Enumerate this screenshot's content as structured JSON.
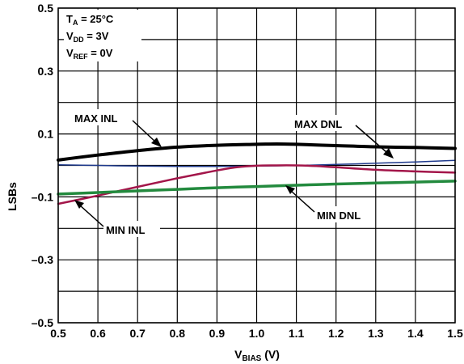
{
  "chart_data": {
    "type": "line",
    "x_label": "V",
    "x_label_sub": "BIAS",
    "x_label_unit": " (V)",
    "y_label": "LSBs",
    "xlim": [
      0.5,
      1.5
    ],
    "ylim": [
      -0.5,
      0.5
    ],
    "x_ticks": [
      "0.5",
      "0.6",
      "0.7",
      "0.8",
      "0.9",
      "1.0",
      "1.1",
      "1.2",
      "1.3",
      "1.4",
      "1.5"
    ],
    "y_ticks": [
      {
        "value": 0.5,
        "label": "0.5"
      },
      {
        "value": 0.3,
        "label": "0.3"
      },
      {
        "value": 0.1,
        "label": "0.1"
      },
      {
        "value": -0.1,
        "label": "–0.1"
      },
      {
        "value": -0.3,
        "label": "–0.3"
      },
      {
        "value": -0.5,
        "label": "–0.5"
      }
    ],
    "grid": true,
    "conditions": [
      {
        "main": "T",
        "sub": "A",
        "rest": " = 25°C"
      },
      {
        "main": "V",
        "sub": "DD",
        "rest": " = 3V"
      },
      {
        "main": "V",
        "sub": "REF",
        "rest": " = 0V"
      }
    ],
    "series": [
      {
        "name": "MAX INL",
        "color": "#000000",
        "width": 4,
        "x": [
          0.5,
          0.6,
          0.7,
          0.8,
          0.9,
          1.0,
          1.05,
          1.1,
          1.2,
          1.3,
          1.4,
          1.5
        ],
        "y": [
          0.017,
          0.033,
          0.047,
          0.058,
          0.064,
          0.067,
          0.068,
          0.067,
          0.063,
          0.059,
          0.057,
          0.054
        ]
      },
      {
        "name": "MAX DNL",
        "color": "#1f3a8c",
        "width": 1.5,
        "x": [
          0.5,
          0.6,
          0.7,
          0.8,
          0.9,
          1.0,
          1.1,
          1.2,
          1.3,
          1.4,
          1.5
        ],
        "y": [
          0.002,
          0.0,
          -0.002,
          -0.003,
          -0.003,
          -0.002,
          0.0,
          0.003,
          0.007,
          0.011,
          0.016
        ]
      },
      {
        "name": "MIN INL",
        "color": "#a3164a",
        "width": 2.5,
        "x": [
          0.5,
          0.6,
          0.7,
          0.8,
          0.9,
          0.95,
          1.0,
          1.05,
          1.1,
          1.15,
          1.2,
          1.3,
          1.4,
          1.5
        ],
        "y": [
          -0.122,
          -0.096,
          -0.068,
          -0.041,
          -0.016,
          -0.006,
          -0.001,
          0.0,
          0.0,
          -0.002,
          -0.006,
          -0.014,
          -0.019,
          -0.023
        ]
      },
      {
        "name": "MIN DNL",
        "color": "#238a3e",
        "width": 3.5,
        "x": [
          0.5,
          0.6,
          0.7,
          0.8,
          0.9,
          1.0,
          1.1,
          1.2,
          1.3,
          1.4,
          1.5
        ],
        "y": [
          -0.091,
          -0.086,
          -0.081,
          -0.076,
          -0.071,
          -0.067,
          -0.063,
          -0.059,
          -0.056,
          -0.053,
          -0.05
        ]
      }
    ],
    "annotations": [
      {
        "text": "MAX INL"
      },
      {
        "text": "MAX DNL"
      },
      {
        "text": "MIN INL"
      },
      {
        "text": "MIN DNL"
      }
    ]
  }
}
